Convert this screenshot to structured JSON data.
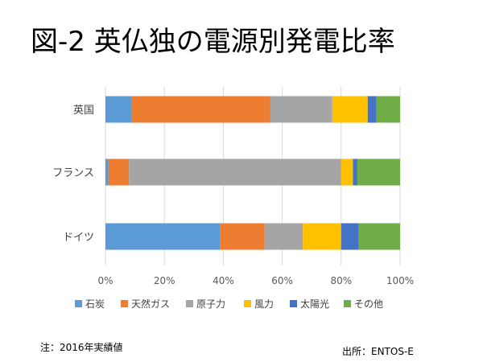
{
  "title": "図-2 英仏独の電源別発電比率",
  "note": "注：2016年実績値",
  "source": "出所：ENTOS-E",
  "colors": {
    "石炭": "#5b9bd5",
    "天然ガス": "#ed7d31",
    "原子力": "#a5a5a5",
    "風力": "#ffc000",
    "太陽光": "#4472c4",
    "その他": "#70ad47"
  },
  "chart_data": {
    "type": "bar",
    "orientation": "horizontal",
    "stacked": true,
    "title": "図-2 英仏独の電源別発電比率",
    "categories": [
      "英国",
      "フランス",
      "ドイツ"
    ],
    "series": [
      {
        "name": "石炭",
        "values": [
          9,
          1,
          39
        ]
      },
      {
        "name": "天然ガス",
        "values": [
          47,
          7,
          15
        ]
      },
      {
        "name": "原子力",
        "values": [
          21,
          72,
          13
        ]
      },
      {
        "name": "風力",
        "values": [
          12,
          4,
          13
        ]
      },
      {
        "name": "太陽光",
        "values": [
          3,
          1.5,
          6
        ]
      },
      {
        "name": "その他",
        "values": [
          8,
          14.5,
          14
        ]
      }
    ],
    "xlim": [
      0,
      100
    ],
    "xticks": [
      "0%",
      "20%",
      "40%",
      "60%",
      "80%",
      "100%"
    ],
    "grid": true,
    "legend": "bottom",
    "xlabel": "",
    "ylabel": ""
  }
}
